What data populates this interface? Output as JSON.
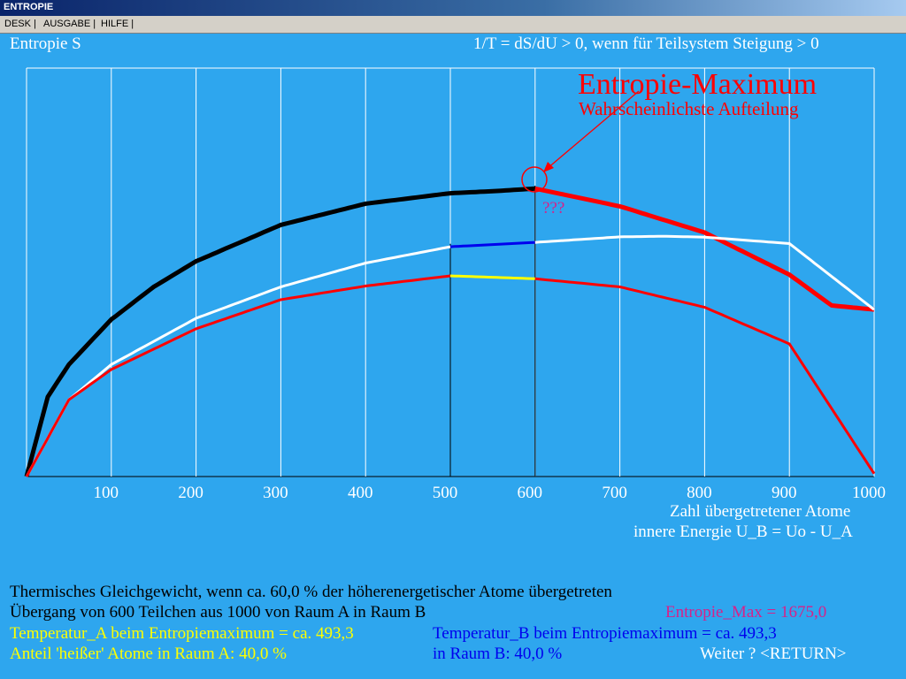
{
  "window": {
    "title": "ENTROPIE"
  },
  "menu": [
    {
      "label": "DESK |"
    },
    {
      "label": "AUSGABE |"
    },
    {
      "label": "HILFE |"
    }
  ],
  "header": {
    "left": "Entropie S",
    "right": "1/T = dS/dU > 0, wenn für Teilsystem Steigung > 0"
  },
  "annotation": {
    "title": "Entropie-Maximum",
    "subtitle": "Wahrscheinlichste Aufteilung",
    "marker": "???"
  },
  "axis": {
    "label_line1": "Zahl übergetretener Atome",
    "label_line2": "innere Energie U_B = Uo - U_A"
  },
  "info": {
    "line1": "Thermisches Gleichgewicht, wenn ca. 60,0 % der höherenergetischer Atome übergetreten",
    "line2": "Übergang von  600  Teilchen aus  1000  von Raum A in Raum B",
    "entropy_max": "Entropie_Max = 1675,0",
    "temp_a": "Temperatur_A beim Entropiemaximum = ca.  493,3",
    "temp_b": "Temperatur_B beim Entropiemaximum = ca.  493,3",
    "share_a": "Anteil 'heißer' Atome in Raum A: 40,0 %",
    "share_b": "in Raum B: 40,0 %",
    "continue": "Weiter ?  <RETURN>"
  },
  "chart_data": {
    "type": "line",
    "xlim": [
      0,
      1000
    ],
    "ticks": [
      "100",
      "200",
      "300",
      "400",
      "500",
      "600",
      "700",
      "800",
      "900",
      "1000"
    ],
    "tick_values": [
      100,
      200,
      300,
      400,
      500,
      600,
      700,
      800,
      900,
      1000
    ],
    "grid": true,
    "markers": {
      "vline_a": 500,
      "vline_b": 600,
      "max_x": 600
    },
    "series": [
      {
        "color": "#000000",
        "highlight_color": "#ff0000",
        "split_x": 600,
        "x": [
          0,
          25,
          50,
          100,
          150,
          200,
          300,
          400,
          500,
          550,
          600,
          700,
          800,
          900,
          950,
          1000
        ],
        "y": [
          0,
          0.274,
          0.385,
          0.54,
          0.652,
          0.74,
          0.865,
          0.938,
          0.974,
          0.981,
          0.99,
          0.929,
          0.839,
          0.694,
          0.588,
          0.574
        ]
      },
      {
        "color": "#ffffff",
        "highlight_color": "#0000ee",
        "split_from": 500,
        "split_to": 600,
        "x": [
          0,
          50,
          100,
          200,
          300,
          400,
          500,
          600,
          700,
          750,
          800,
          900,
          1000
        ],
        "y": [
          0,
          0.264,
          0.385,
          0.544,
          0.652,
          0.734,
          0.79,
          0.805,
          0.824,
          0.826,
          0.823,
          0.801,
          0.574
        ]
      },
      {
        "color": "#ff0000",
        "highlight_color": "#ffff00",
        "split_from": 500,
        "split_to": 600,
        "x": [
          0,
          50,
          100,
          200,
          300,
          400,
          500,
          600,
          700,
          800,
          900,
          1000
        ],
        "y": [
          0,
          0.264,
          0.368,
          0.508,
          0.608,
          0.655,
          0.69,
          0.68,
          0.652,
          0.582,
          0.456,
          0.01
        ]
      }
    ]
  }
}
